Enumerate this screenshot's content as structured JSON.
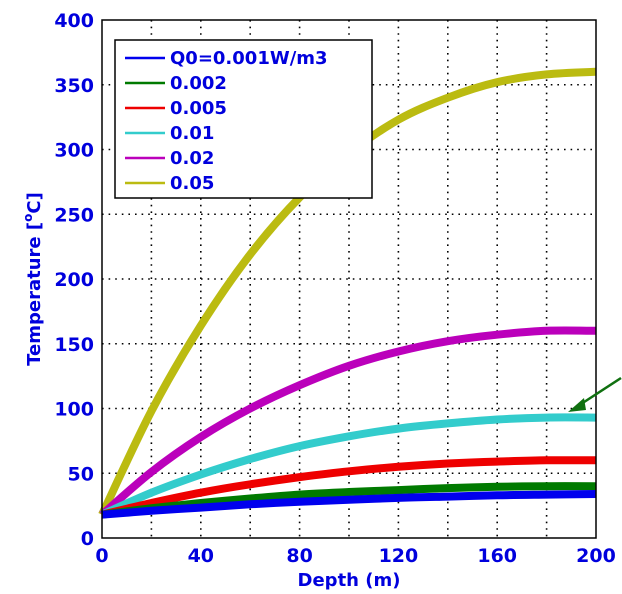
{
  "chart_data": {
    "type": "line",
    "title": "",
    "xlabel": "Depth  (m)",
    "ylabel_main": "Temperature [",
    "ylabel_sup": "o",
    "ylabel_end": "C]",
    "xlim": [
      0,
      200
    ],
    "ylim": [
      0,
      400
    ],
    "x_ticks": [
      "0",
      "40",
      "80",
      "120",
      "160",
      "200"
    ],
    "y_ticks": [
      "0",
      "50",
      "100",
      "150",
      "200",
      "250",
      "300",
      "350",
      "400"
    ],
    "grid": true,
    "grid_step_x": 20,
    "grid_step_y": 50,
    "legend_position": "top-left",
    "x": [
      0,
      20,
      40,
      60,
      80,
      100,
      120,
      140,
      160,
      180,
      200
    ],
    "series": [
      {
        "name": "Q0=0.001W/m3",
        "color": "#0000ee",
        "values": [
          18,
          21,
          23.5,
          26,
          28,
          29.5,
          31,
          32,
          33,
          33.5,
          34
        ]
      },
      {
        "name": "0.002",
        "color": "#007a00",
        "values": [
          18,
          23,
          27,
          30.5,
          33.5,
          35.5,
          37,
          38.5,
          39.5,
          40,
          40
        ]
      },
      {
        "name": "0.005",
        "color": "#ee0000",
        "values": [
          18,
          27,
          35,
          41.5,
          47,
          51.5,
          55,
          57.5,
          59,
          60,
          60
        ]
      },
      {
        "name": "0.01",
        "color": "#33cccc",
        "values": [
          18,
          35,
          49,
          61,
          71,
          78.5,
          84.5,
          88.5,
          91.5,
          93,
          93
        ]
      },
      {
        "name": "0.02",
        "color": "#bb00bb",
        "values": [
          18,
          51,
          78,
          100,
          118,
          133,
          144,
          152,
          157,
          160,
          160
        ]
      },
      {
        "name": "0.05",
        "color": "#bbbb11",
        "values": [
          18,
          98,
          164,
          219,
          263,
          297,
          323,
          340,
          352,
          358,
          360
        ]
      }
    ],
    "annotation_arrow_color": "#107010"
  }
}
